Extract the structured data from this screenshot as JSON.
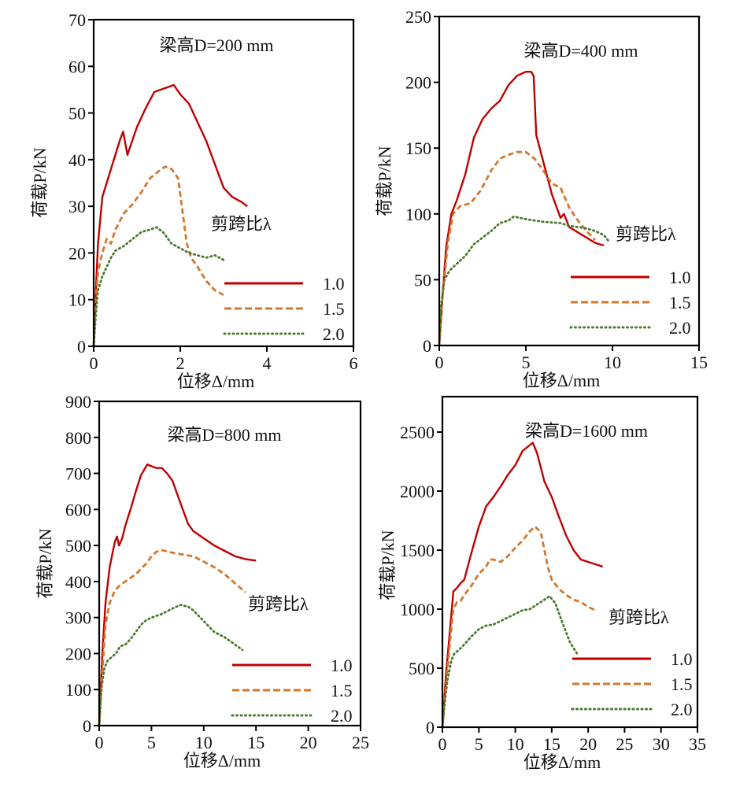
{
  "figure": {
    "description": "Load-displacement curves for beams of four depths at three shear span ratios"
  },
  "legend": {
    "title": "剪跨比λ",
    "entries": [
      {
        "label": "1.0",
        "color": "#c00000",
        "style": "solid"
      },
      {
        "label": "1.5",
        "color": "#d2782d",
        "style": "dashed"
      },
      {
        "label": "2.0",
        "color": "#4a7a2e",
        "style": "dotted"
      }
    ]
  },
  "chart_data": [
    {
      "type": "line",
      "title": "梁高D=200 mm",
      "xlabel": "位移Δ/mm",
      "ylabel": "荷载P/kN",
      "xlim": [
        0,
        6
      ],
      "ylim": [
        0,
        70
      ],
      "xticks": [
        0,
        2,
        4,
        6
      ],
      "yticks": [
        0,
        10,
        20,
        30,
        40,
        50,
        60,
        70
      ],
      "grid": false,
      "legend_position": "bottom-right",
      "series": [
        {
          "name": "1.0",
          "x": [
            0,
            0.05,
            0.1,
            0.2,
            0.3,
            0.4,
            0.5,
            0.6,
            0.68,
            0.72,
            0.78,
            0.85,
            1.0,
            1.2,
            1.4,
            1.55,
            1.7,
            1.85,
            2.0,
            2.2,
            2.4,
            2.6,
            2.8,
            3.0,
            3.2,
            3.4,
            3.55
          ],
          "y": [
            0,
            12,
            22,
            32,
            35,
            38,
            41,
            44,
            46,
            44,
            41,
            43,
            47,
            51,
            54.5,
            55,
            55.5,
            56,
            54,
            52,
            48,
            44,
            39,
            34,
            32,
            31,
            30
          ]
        },
        {
          "name": "1.5",
          "x": [
            0,
            0.05,
            0.1,
            0.2,
            0.3,
            0.4,
            0.5,
            0.7,
            0.9,
            1.1,
            1.3,
            1.5,
            1.65,
            1.8,
            1.95,
            2.05,
            2.15,
            2.25,
            2.4,
            2.6,
            2.8,
            3.0
          ],
          "y": [
            0,
            10,
            16,
            20,
            23,
            22,
            25,
            28.5,
            30.5,
            33,
            36,
            37.5,
            38.5,
            38,
            36,
            29,
            22,
            19,
            17,
            14,
            12,
            11
          ]
        },
        {
          "name": "2.0",
          "x": [
            0,
            0.05,
            0.1,
            0.2,
            0.3,
            0.4,
            0.5,
            0.7,
            0.9,
            1.1,
            1.3,
            1.45,
            1.6,
            1.8,
            2.0,
            2.2,
            2.4,
            2.6,
            2.8,
            3.0
          ],
          "y": [
            0,
            7,
            12,
            15,
            17,
            19,
            20.5,
            21.5,
            23,
            24.5,
            25,
            25.5,
            24.5,
            22,
            21,
            20,
            19.5,
            19,
            19.5,
            18.5
          ]
        }
      ]
    },
    {
      "type": "line",
      "title": "梁高D=400 mm",
      "xlabel": "位移Δ/mm",
      "ylabel": "荷载P/kN",
      "xlim": [
        0,
        15
      ],
      "ylim": [
        0,
        250
      ],
      "xticks": [
        0,
        5,
        10,
        15
      ],
      "yticks": [
        0,
        50,
        100,
        150,
        200,
        250
      ],
      "grid": false,
      "legend_position": "bottom-right",
      "series": [
        {
          "name": "1.0",
          "x": [
            0,
            0.2,
            0.4,
            0.7,
            1.0,
            1.5,
            2.0,
            2.5,
            3.0,
            3.5,
            4.0,
            4.5,
            5.0,
            5.3,
            5.45,
            5.6,
            6.0,
            6.5,
            7.0,
            7.2,
            7.5,
            8.0,
            8.5,
            9.0,
            9.5
          ],
          "y": [
            0,
            40,
            75,
            100,
            110,
            130,
            158,
            172,
            180,
            186,
            198,
            205,
            208,
            208,
            205,
            160,
            140,
            115,
            97,
            100,
            90,
            86,
            82,
            78,
            76
          ]
        },
        {
          "name": "1.5",
          "x": [
            0,
            0.2,
            0.5,
            0.8,
            1.2,
            1.8,
            2.4,
            3.0,
            3.5,
            4.0,
            4.5,
            5.0,
            5.5,
            6.0,
            6.5,
            7.0,
            7.5,
            8.0,
            8.5,
            9.0
          ],
          "y": [
            0,
            40,
            78,
            100,
            106,
            108,
            118,
            133,
            142,
            145,
            147,
            147,
            142,
            133,
            123,
            120,
            105,
            95,
            87,
            80
          ]
        },
        {
          "name": "2.0",
          "x": [
            0,
            0.1,
            0.3,
            0.6,
            1.0,
            1.5,
            2.0,
            2.5,
            3.0,
            3.5,
            4.0,
            4.3,
            5.0,
            6.0,
            7.0,
            7.5,
            8.0,
            8.5,
            9.0,
            9.5,
            9.8
          ],
          "y": [
            0,
            30,
            50,
            57,
            62,
            68,
            77,
            82,
            87,
            93,
            95,
            98,
            96,
            94,
            93,
            91,
            90,
            89,
            87,
            84,
            79
          ]
        }
      ]
    },
    {
      "type": "line",
      "title": "梁高D=800 mm",
      "xlabel": "位移Δ/mm",
      "ylabel": "荷载P/kN",
      "xlim": [
        0,
        25
      ],
      "ylim": [
        0,
        900
      ],
      "xticks": [
        0,
        5,
        10,
        15,
        20,
        25
      ],
      "yticks": [
        0,
        100,
        200,
        300,
        400,
        500,
        600,
        700,
        800,
        900
      ],
      "grid": false,
      "legend_position": "bottom-right",
      "series": [
        {
          "name": "1.0",
          "x": [
            0,
            0.3,
            0.6,
            1.0,
            1.5,
            1.7,
            1.9,
            2.2,
            2.5,
            3.0,
            3.5,
            4.0,
            4.6,
            5.0,
            5.5,
            6.0,
            6.5,
            7.0,
            7.5,
            8.0,
            8.5,
            9.0,
            9.5,
            10.0,
            10.5,
            11.0,
            12.0,
            13.0,
            14.0,
            15.0
          ],
          "y": [
            0,
            200,
            340,
            440,
            510,
            525,
            500,
            520,
            555,
            600,
            650,
            695,
            725,
            720,
            715,
            715,
            700,
            680,
            640,
            600,
            560,
            540,
            530,
            520,
            510,
            500,
            485,
            470,
            462,
            458
          ]
        },
        {
          "name": "1.5",
          "x": [
            0,
            0.3,
            0.6,
            1.0,
            1.5,
            2.0,
            2.5,
            3.0,
            3.5,
            4.0,
            4.5,
            5.0,
            5.5,
            6.0,
            7.0,
            8.0,
            9.0,
            10.0,
            11.0,
            12.0,
            13.0,
            14.0
          ],
          "y": [
            0,
            150,
            280,
            340,
            375,
            390,
            400,
            410,
            420,
            435,
            450,
            470,
            483,
            487,
            480,
            475,
            470,
            455,
            440,
            420,
            395,
            370
          ]
        },
        {
          "name": "2.0",
          "x": [
            0,
            0.2,
            0.5,
            0.8,
            1.2,
            1.6,
            2.0,
            2.5,
            3.0,
            3.5,
            4.0,
            4.5,
            5.0,
            6.0,
            7.0,
            7.8,
            8.5,
            9.0,
            10.0,
            11.0,
            12.0,
            13.0,
            13.7
          ],
          "y": [
            0,
            100,
            160,
            180,
            190,
            200,
            220,
            225,
            240,
            260,
            280,
            293,
            300,
            310,
            325,
            335,
            330,
            320,
            290,
            260,
            245,
            225,
            210
          ]
        }
      ]
    },
    {
      "type": "line",
      "title": "梁高D=1600 mm",
      "xlabel": "位移Δ/mm",
      "ylabel": "荷载P/kN",
      "xlim": [
        0,
        35
      ],
      "ylim": [
        0,
        2800
      ],
      "xticks": [
        0,
        5,
        10,
        15,
        20,
        25,
        30,
        35
      ],
      "yticks": [
        0,
        500,
        1000,
        1500,
        2000,
        2500
      ],
      "grid": false,
      "legend_position": "bottom-right",
      "series": [
        {
          "name": "1.0",
          "x": [
            0,
            0.5,
            1.0,
            1.5,
            2.0,
            2.5,
            3.0,
            4.0,
            5.0,
            6.0,
            7.0,
            8.0,
            9.0,
            10.0,
            11.0,
            12.0,
            12.4,
            13.0,
            14.0,
            15.0,
            16.0,
            17.0,
            18.0,
            19.0,
            20.0,
            21.0,
            22.0
          ],
          "y": [
            0,
            450,
            800,
            1150,
            1180,
            1220,
            1250,
            1480,
            1700,
            1870,
            1950,
            2040,
            2140,
            2220,
            2340,
            2390,
            2410,
            2320,
            2080,
            1950,
            1780,
            1620,
            1500,
            1420,
            1400,
            1380,
            1360
          ]
        },
        {
          "name": "1.5",
          "x": [
            0,
            0.5,
            1.0,
            1.5,
            2.0,
            2.5,
            3.0,
            4.0,
            5.0,
            6.0,
            6.5,
            7.0,
            8.0,
            9.0,
            10.0,
            11.0,
            12.0,
            12.7,
            13.5,
            14.0,
            14.5,
            15.0,
            16.0,
            17.0,
            18.0,
            19.0,
            20.0,
            21.0
          ],
          "y": [
            0,
            350,
            700,
            1000,
            1060,
            1070,
            1120,
            1200,
            1300,
            1360,
            1420,
            1420,
            1400,
            1450,
            1520,
            1580,
            1660,
            1700,
            1650,
            1500,
            1350,
            1250,
            1170,
            1120,
            1080,
            1060,
            1020,
            990
          ]
        },
        {
          "name": "2.0",
          "x": [
            0,
            0.3,
            0.7,
            1.2,
            1.6,
            2.0,
            3.0,
            4.0,
            5.0,
            6.0,
            7.0,
            8.0,
            9.0,
            10.0,
            11.0,
            12.0,
            13.0,
            14.0,
            14.7,
            15.5,
            16.5,
            17.5,
            18.5
          ],
          "y": [
            0,
            200,
            400,
            560,
            620,
            640,
            700,
            770,
            830,
            860,
            870,
            900,
            930,
            960,
            990,
            1000,
            1040,
            1080,
            1110,
            1050,
            880,
            720,
            620
          ]
        }
      ]
    }
  ]
}
